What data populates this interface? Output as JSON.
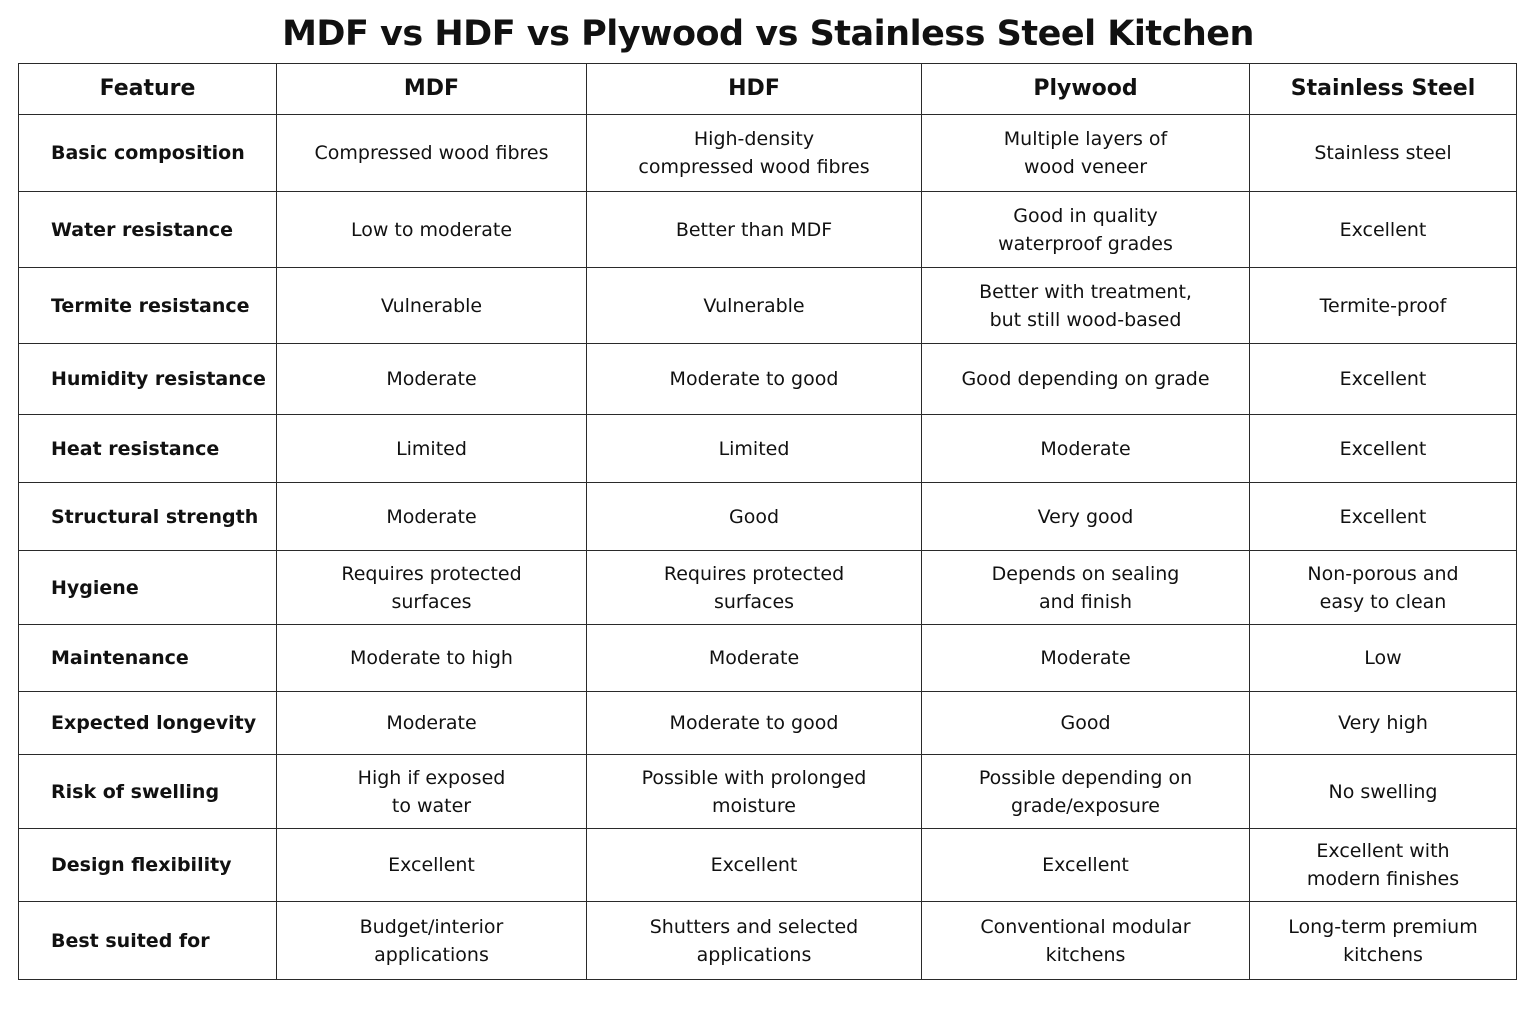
{
  "title": "MDF vs HDF vs Plywood vs Stainless Steel Kitchen",
  "headers": [
    "Feature",
    "MDF",
    "HDF",
    "Plywood",
    "Stainless Steel"
  ],
  "rows": [
    {
      "feature": "Basic composition",
      "mdf": "Compressed wood fibres",
      "hdf": "High-density\ncompressed wood fibres",
      "plywood": "Multiple layers of\nwood veneer",
      "steel": "Stainless steel"
    },
    {
      "feature": "Water resistance",
      "mdf": "Low to moderate",
      "hdf": "Better than MDF",
      "plywood": "Good in quality\nwaterproof grades",
      "steel": "Excellent"
    },
    {
      "feature": "Termite resistance",
      "mdf": "Vulnerable",
      "hdf": "Vulnerable",
      "plywood": "Better with treatment,\nbut still wood-based",
      "steel": "Termite-proof"
    },
    {
      "feature": "Humidity resistance",
      "mdf": "Moderate",
      "hdf": "Moderate to good",
      "plywood": "Good depending on grade",
      "steel": "Excellent"
    },
    {
      "feature": "Heat resistance",
      "mdf": "Limited",
      "hdf": "Limited",
      "plywood": "Moderate",
      "steel": "Excellent"
    },
    {
      "feature": "Structural strength",
      "mdf": "Moderate",
      "hdf": "Good",
      "plywood": "Very good",
      "steel": "Excellent"
    },
    {
      "feature": "Hygiene",
      "mdf": "Requires protected\nsurfaces",
      "hdf": "Requires protected\nsurfaces",
      "plywood": "Depends on sealing\nand finish",
      "steel": "Non-porous and\neasy to clean"
    },
    {
      "feature": "Maintenance",
      "mdf": "Moderate to high",
      "hdf": "Moderate",
      "plywood": "Moderate",
      "steel": "Low"
    },
    {
      "feature": "Expected longevity",
      "mdf": "Moderate",
      "hdf": "Moderate to good",
      "plywood": "Good",
      "steel": "Very high"
    },
    {
      "feature": "Risk of swelling",
      "mdf": "High if exposed\nto water",
      "hdf": "Possible with prolonged\nmoisture",
      "plywood": "Possible depending on\ngrade/exposure",
      "steel": "No swelling"
    },
    {
      "feature": "Design flexibility",
      "mdf": "Excellent",
      "hdf": "Excellent",
      "plywood": "Excellent",
      "steel": "Excellent with\nmodern finishes"
    },
    {
      "feature": "Best suited for",
      "mdf": "Budget/interior\napplications",
      "hdf": "Shutters and selected\napplications",
      "plywood": "Conventional modular\nkitchens",
      "steel": "Long-term premium\nkitchens"
    }
  ]
}
